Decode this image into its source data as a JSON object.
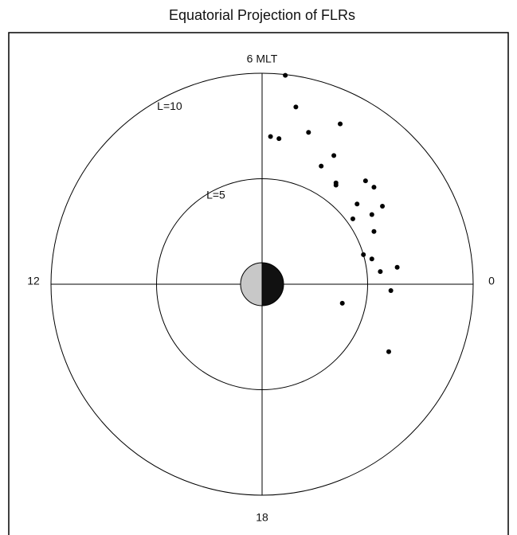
{
  "chart_data": {
    "type": "scatter",
    "title": "Equatorial Projection of FLRs",
    "x": [
      1.1,
      1.6,
      0.4,
      0.8,
      2.2,
      3.7,
      3.4,
      2.8,
      3.5,
      3.5,
      4.9,
      5.3,
      4.5,
      5.7,
      5.2,
      4.3,
      5.3,
      4.8,
      5.2,
      6.4,
      5.6,
      6.1,
      3.8,
      6.0
    ],
    "values": [
      9.9,
      8.4,
      7.0,
      6.9,
      7.2,
      7.6,
      6.1,
      5.6,
      4.8,
      4.7,
      4.9,
      4.6,
      3.8,
      3.7,
      3.3,
      3.1,
      2.5,
      1.4,
      1.2,
      0.8,
      0.6,
      -0.3,
      -0.9,
      -3.2
    ],
    "color": "#000000",
    "xlim": [
      -10,
      10
    ],
    "ylim": [
      -10,
      10
    ],
    "rings": [
      {
        "value": 5,
        "label": "L=5"
      },
      {
        "value": 10,
        "label": "L=10"
      }
    ],
    "direction_labels": {
      "top": "6 MLT",
      "right": "0",
      "left": "12",
      "bottom": "18"
    }
  }
}
